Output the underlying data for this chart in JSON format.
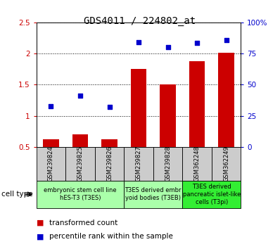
{
  "title": "GDS4011 / 224802_at",
  "samples": [
    "GSM239824",
    "GSM239825",
    "GSM239826",
    "GSM239827",
    "GSM239828",
    "GSM362248",
    "GSM362249"
  ],
  "bar_values": [
    0.62,
    0.7,
    0.62,
    1.75,
    1.5,
    1.88,
    2.01
  ],
  "scatter_values_left": [
    1.15,
    1.32,
    1.14,
    2.18,
    2.1,
    2.17,
    2.22
  ],
  "bar_color": "#cc0000",
  "scatter_color": "#0000cc",
  "ylim_left": [
    0.5,
    2.5
  ],
  "ylim_right": [
    0,
    100
  ],
  "yticks_left": [
    0.5,
    1.0,
    1.5,
    2.0,
    2.5
  ],
  "ytick_labels_left": [
    "0.5",
    "1",
    "1.5",
    "2",
    "2.5"
  ],
  "yticks_right_vals": [
    0,
    25,
    50,
    75,
    100
  ],
  "ytick_labels_right": [
    "0",
    "25",
    "50",
    "75",
    "100%"
  ],
  "group_spans": [
    {
      "start": 0,
      "end": 2,
      "label1": "embryonic stem cell line",
      "label2": "hES-T3 (T3ES)",
      "color": "#aaffaa"
    },
    {
      "start": 3,
      "end": 4,
      "label1": "T3ES derived embr",
      "label2": "yoid bodies (T3EB)",
      "color": "#aaffaa"
    },
    {
      "start": 5,
      "end": 6,
      "label1": "T3ES derived",
      "label2": "pancreatic islet-like\ncells (T3pi)",
      "color": "#33ee33"
    }
  ],
  "cell_type_label": "cell type",
  "legend_bar_label": "transformed count",
  "legend_scatter_label": "percentile rank within the sample",
  "bg_color_sample": "#cccccc",
  "title_fontsize": 10,
  "tick_fontsize": 7.5,
  "sample_fontsize": 6,
  "group_fontsize": 6,
  "legend_fontsize": 7.5
}
